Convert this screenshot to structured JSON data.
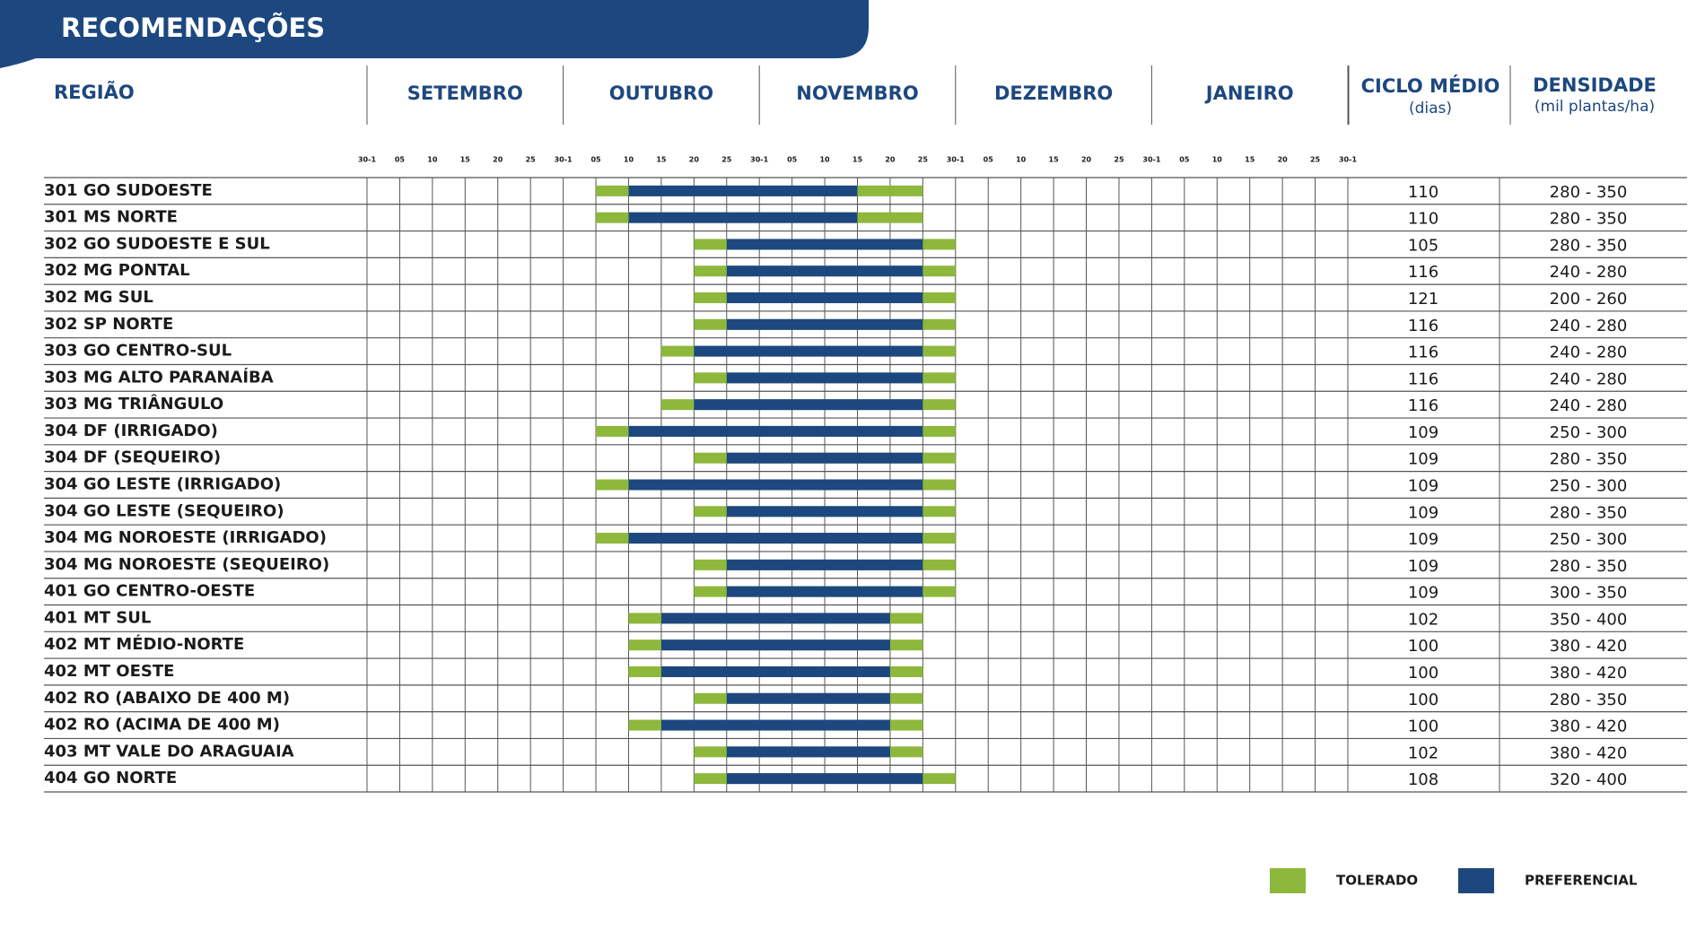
{
  "chart_data": {
    "type": "gantt",
    "title": "RECOMENDAÇÕES",
    "region_header": "REGIÃO",
    "months": [
      "SETEMBRO",
      "OUTUBRO",
      "NOVEMBRO",
      "DEZEMBRO",
      "JANEIRO"
    ],
    "cycle_header": "CICLO MÉDIO",
    "cycle_unit": "(dias)",
    "density_header": "DENSIDADE",
    "density_unit": "(mil plantas/ha)",
    "xlim": [
      0,
      30
    ],
    "xticks": [
      {
        "value": 0,
        "label": "30-1"
      },
      {
        "value": 1,
        "label": "05"
      },
      {
        "value": 2,
        "label": "10"
      },
      {
        "value": 3,
        "label": "15"
      },
      {
        "value": 4,
        "label": "20"
      },
      {
        "value": 5,
        "label": "25"
      },
      {
        "value": 6,
        "label": "30-1"
      },
      {
        "value": 7,
        "label": "05"
      },
      {
        "value": 8,
        "label": "10"
      },
      {
        "value": 9,
        "label": "15"
      },
      {
        "value": 10,
        "label": "20"
      },
      {
        "value": 11,
        "label": "25"
      },
      {
        "value": 12,
        "label": "30-1"
      },
      {
        "value": 13,
        "label": "05"
      },
      {
        "value": 14,
        "label": "10"
      },
      {
        "value": 15,
        "label": "15"
      },
      {
        "value": 16,
        "label": "20"
      },
      {
        "value": 17,
        "label": "25"
      },
      {
        "value": 18,
        "label": "30-1"
      },
      {
        "value": 19,
        "label": "05"
      },
      {
        "value": 20,
        "label": "10"
      },
      {
        "value": 21,
        "label": "15"
      },
      {
        "value": 22,
        "label": "20"
      },
      {
        "value": 23,
        "label": "25"
      },
      {
        "value": 24,
        "label": "30-1"
      },
      {
        "value": 25,
        "label": "05"
      },
      {
        "value": 26,
        "label": "10"
      },
      {
        "value": 27,
        "label": "15"
      },
      {
        "value": 28,
        "label": "20"
      },
      {
        "value": 29,
        "label": "25"
      },
      {
        "value": 30,
        "label": "30-1"
      }
    ],
    "series": [
      {
        "name": "TOLERADO",
        "color": "#8db83c"
      },
      {
        "name": "PREFERENCIAL",
        "color": "#1d477f"
      }
    ],
    "rows": [
      {
        "region": "301 GO SUDOESTE",
        "tolerado": [
          7,
          17
        ],
        "preferencial": [
          8,
          15
        ],
        "cycle": 110,
        "density": "280 - 350"
      },
      {
        "region": "301 MS NORTE",
        "tolerado": [
          7,
          17
        ],
        "preferencial": [
          8,
          15
        ],
        "cycle": 110,
        "density": "280 - 350"
      },
      {
        "region": "302 GO SUDOESTE E SUL",
        "tolerado": [
          10,
          18
        ],
        "preferencial": [
          11,
          17
        ],
        "cycle": 105,
        "density": "280 - 350"
      },
      {
        "region": "302 MG PONTAL",
        "tolerado": [
          10,
          18
        ],
        "preferencial": [
          11,
          17
        ],
        "cycle": 116,
        "density": "240 - 280"
      },
      {
        "region": "302 MG SUL",
        "tolerado": [
          10,
          18
        ],
        "preferencial": [
          11,
          17
        ],
        "cycle": 121,
        "density": "200 - 260"
      },
      {
        "region": "302 SP NORTE",
        "tolerado": [
          10,
          18
        ],
        "preferencial": [
          11,
          17
        ],
        "cycle": 116,
        "density": "240 - 280"
      },
      {
        "region": "303 GO CENTRO-SUL",
        "tolerado": [
          9,
          18
        ],
        "preferencial": [
          10,
          17
        ],
        "cycle": 116,
        "density": "240 - 280"
      },
      {
        "region": "303 MG ALTO PARANAÍBA",
        "tolerado": [
          10,
          18
        ],
        "preferencial": [
          11,
          17
        ],
        "cycle": 116,
        "density": "240 - 280"
      },
      {
        "region": "303 MG TRIÂNGULO",
        "tolerado": [
          9,
          18
        ],
        "preferencial": [
          10,
          17
        ],
        "cycle": 116,
        "density": "240 - 280"
      },
      {
        "region": "304 DF (IRRIGADO)",
        "tolerado": [
          7,
          18
        ],
        "preferencial": [
          8,
          17
        ],
        "cycle": 109,
        "density": "250 - 300"
      },
      {
        "region": "304 DF (SEQUEIRO)",
        "tolerado": [
          10,
          18
        ],
        "preferencial": [
          11,
          17
        ],
        "cycle": 109,
        "density": "280 - 350"
      },
      {
        "region": "304 GO LESTE (IRRIGADO)",
        "tolerado": [
          7,
          18
        ],
        "preferencial": [
          8,
          17
        ],
        "cycle": 109,
        "density": "250 - 300"
      },
      {
        "region": "304 GO LESTE (SEQUEIRO)",
        "tolerado": [
          10,
          18
        ],
        "preferencial": [
          11,
          17
        ],
        "cycle": 109,
        "density": "280 - 350"
      },
      {
        "region": "304 MG NOROESTE (IRRIGADO)",
        "tolerado": [
          7,
          18
        ],
        "preferencial": [
          8,
          17
        ],
        "cycle": 109,
        "density": "250 - 300"
      },
      {
        "region": "304 MG NOROESTE (SEQUEIRO)",
        "tolerado": [
          10,
          18
        ],
        "preferencial": [
          11,
          17
        ],
        "cycle": 109,
        "density": "280 - 350"
      },
      {
        "region": "401 GO CENTRO-OESTE",
        "tolerado": [
          10,
          18
        ],
        "preferencial": [
          11,
          17
        ],
        "cycle": 109,
        "density": "300 - 350"
      },
      {
        "region": "401 MT SUL",
        "tolerado": [
          8,
          17
        ],
        "preferencial": [
          9,
          16
        ],
        "cycle": 102,
        "density": "350 - 400"
      },
      {
        "region": "402 MT MÉDIO-NORTE",
        "tolerado": [
          8,
          17
        ],
        "preferencial": [
          9,
          16
        ],
        "cycle": 100,
        "density": "380 - 420"
      },
      {
        "region": "402 MT OESTE",
        "tolerado": [
          8,
          17
        ],
        "preferencial": [
          9,
          16
        ],
        "cycle": 100,
        "density": "380 - 420"
      },
      {
        "region": "402 RO (ABAIXO DE 400 M)",
        "tolerado": [
          10,
          17
        ],
        "preferencial": [
          11,
          16
        ],
        "cycle": 100,
        "density": "280 - 350"
      },
      {
        "region": "402 RO (ACIMA DE 400 M)",
        "tolerado": [
          8,
          17
        ],
        "preferencial": [
          9,
          16
        ],
        "cycle": 100,
        "density": "380 - 420"
      },
      {
        "region": "403 MT VALE DO ARAGUAIA",
        "tolerado": [
          10,
          17
        ],
        "preferencial": [
          11,
          16
        ],
        "cycle": 102,
        "density": "380 - 420"
      },
      {
        "region": "404 GO NORTE",
        "tolerado": [
          10,
          18
        ],
        "preferencial": [
          11,
          17
        ],
        "cycle": 108,
        "density": "320 - 400"
      }
    ]
  }
}
